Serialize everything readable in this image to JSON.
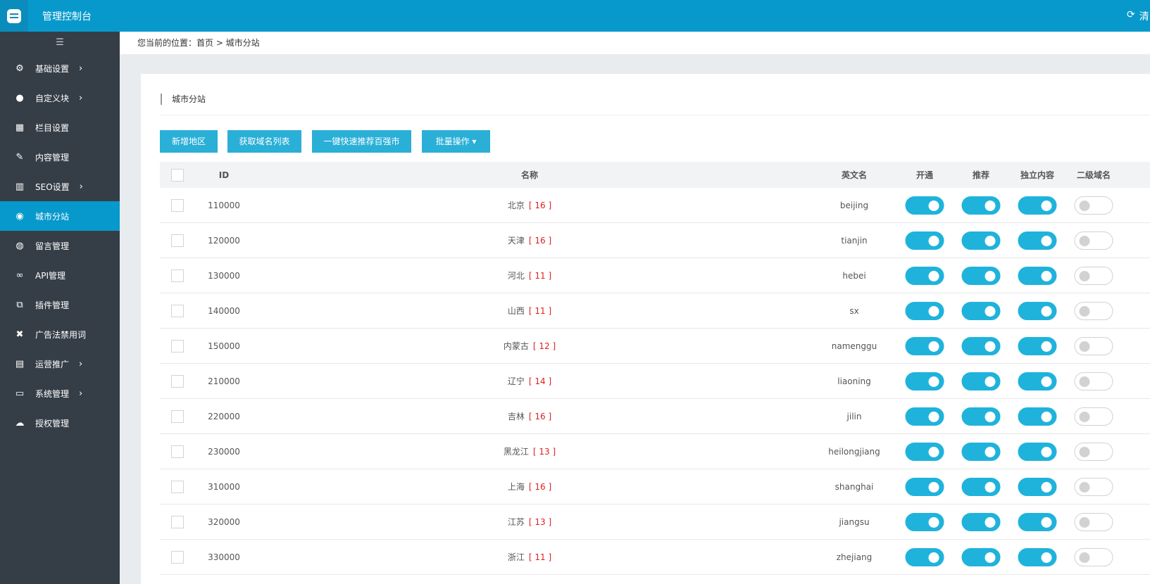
{
  "header": {
    "title": "管理控制台",
    "right_text": "清"
  },
  "sidebar": {
    "items": [
      {
        "label": "基础设置",
        "icon": "gear-icon",
        "glyph": "⚙",
        "chevron": true
      },
      {
        "label": "自定义块",
        "icon": "tag-icon",
        "glyph": "●",
        "chevron": true
      },
      {
        "label": "栏目设置",
        "icon": "grid-icon",
        "glyph": "▦",
        "chevron": false
      },
      {
        "label": "内容管理",
        "icon": "edit-icon",
        "glyph": "✎",
        "chevron": false
      },
      {
        "label": "SEO设置",
        "icon": "bar-chart-icon",
        "glyph": "▥",
        "chevron": true
      },
      {
        "label": "城市分站",
        "icon": "globe-icon",
        "glyph": "◉",
        "chevron": false,
        "active": true
      },
      {
        "label": "留言管理",
        "icon": "comment-icon",
        "glyph": "◍",
        "chevron": false
      },
      {
        "label": "API管理",
        "icon": "link-icon",
        "glyph": "∞",
        "chevron": false
      },
      {
        "label": "插件管理",
        "icon": "copy-icon",
        "glyph": "⧉",
        "chevron": false
      },
      {
        "label": "广告法禁用词",
        "icon": "close-box-icon",
        "glyph": "✖",
        "chevron": false
      },
      {
        "label": "运营推广",
        "icon": "table-icon",
        "glyph": "▤",
        "chevron": true
      },
      {
        "label": "系统管理",
        "icon": "monitor-icon",
        "glyph": "▭",
        "chevron": true
      },
      {
        "label": "授权管理",
        "icon": "cloud-upload-icon",
        "glyph": "☁",
        "chevron": false
      }
    ]
  },
  "breadcrumb": "您当前的位置：首页 > 城市分站",
  "card": {
    "title": "城市分站"
  },
  "toolbar": {
    "add": "新增地区",
    "fetch": "获取域名列表",
    "recommend": "一键快速推荐百强市",
    "batch": "批量操作 ▾"
  },
  "colors": {
    "accent": "#0799cc",
    "button": "#2aafd7",
    "switch_on": "#1fb3dc",
    "count": "#e02020"
  },
  "table": {
    "headers": {
      "id": "ID",
      "name": "名称",
      "en": "英文名",
      "open": "开通",
      "recommend": "推荐",
      "independent": "独立内容",
      "subdomain": "二级域名"
    },
    "rows": [
      {
        "id": "110000",
        "name": "北京",
        "count": "[ 16 ]",
        "en": "beijing",
        "open": true,
        "recommend": true,
        "independent": true,
        "subdomain": false
      },
      {
        "id": "120000",
        "name": "天津",
        "count": "[ 16 ]",
        "en": "tianjin",
        "open": true,
        "recommend": true,
        "independent": true,
        "subdomain": false
      },
      {
        "id": "130000",
        "name": "河北",
        "count": "[ 11 ]",
        "en": "hebei",
        "open": true,
        "recommend": true,
        "independent": true,
        "subdomain": false
      },
      {
        "id": "140000",
        "name": "山西",
        "count": "[ 11 ]",
        "en": "sx",
        "open": true,
        "recommend": true,
        "independent": true,
        "subdomain": false
      },
      {
        "id": "150000",
        "name": "内蒙古",
        "count": "[ 12 ]",
        "en": "namenggu",
        "open": true,
        "recommend": true,
        "independent": true,
        "subdomain": false
      },
      {
        "id": "210000",
        "name": "辽宁",
        "count": "[ 14 ]",
        "en": "liaoning",
        "open": true,
        "recommend": true,
        "independent": true,
        "subdomain": false
      },
      {
        "id": "220000",
        "name": "吉林",
        "count": "[ 16 ]",
        "en": "jilin",
        "open": true,
        "recommend": true,
        "independent": true,
        "subdomain": false
      },
      {
        "id": "230000",
        "name": "黑龙江",
        "count": "[ 13 ]",
        "en": "heilongjiang",
        "open": true,
        "recommend": true,
        "independent": true,
        "subdomain": false
      },
      {
        "id": "310000",
        "name": "上海",
        "count": "[ 16 ]",
        "en": "shanghai",
        "open": true,
        "recommend": true,
        "independent": true,
        "subdomain": false
      },
      {
        "id": "320000",
        "name": "江苏",
        "count": "[ 13 ]",
        "en": "jiangsu",
        "open": true,
        "recommend": true,
        "independent": true,
        "subdomain": false
      },
      {
        "id": "330000",
        "name": "浙江",
        "count": "[ 11 ]",
        "en": "zhejiang",
        "open": true,
        "recommend": true,
        "independent": true,
        "subdomain": false
      }
    ]
  }
}
